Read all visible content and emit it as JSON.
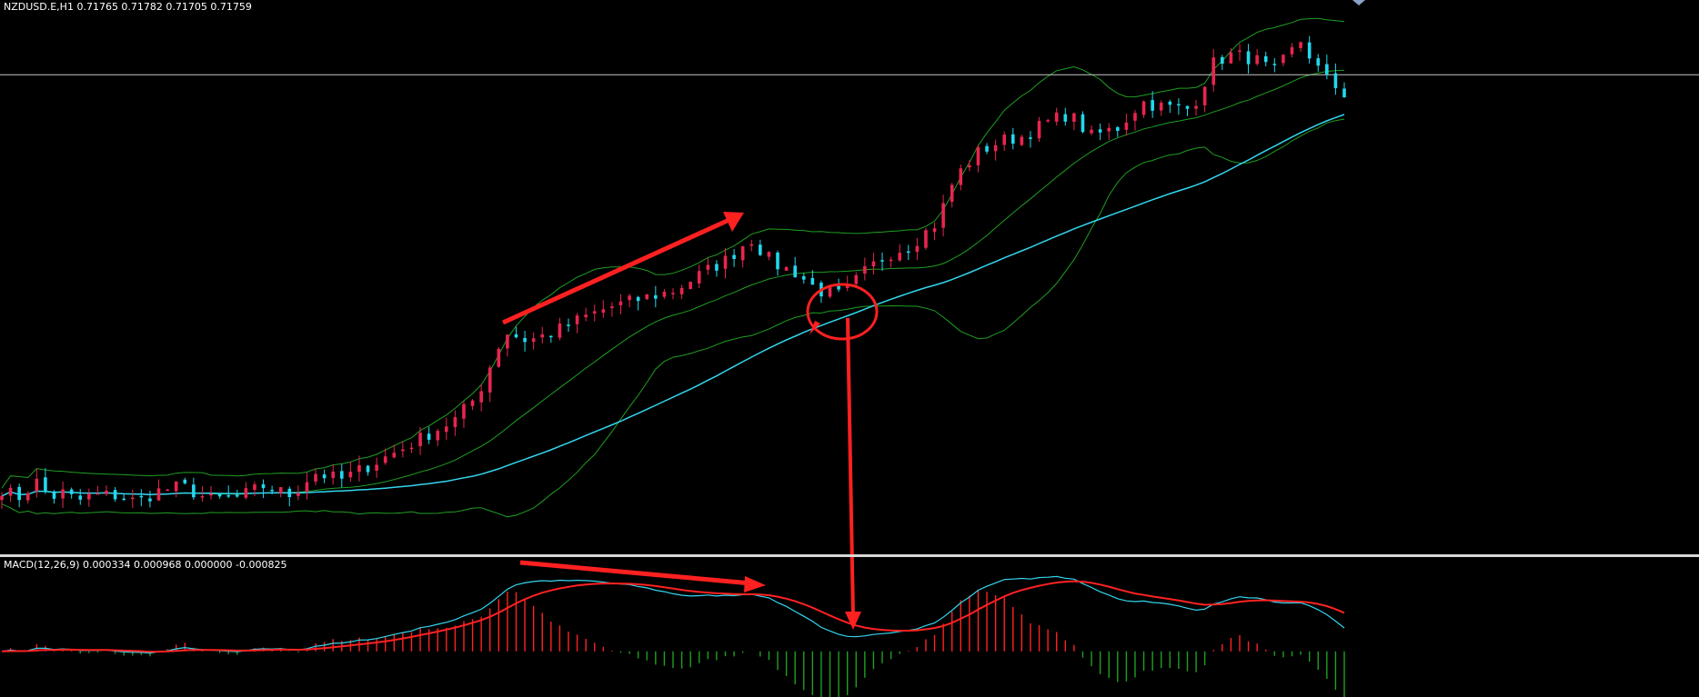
{
  "colors": {
    "background": "#000000",
    "bull_candle": "#e8254f",
    "bear_candle": "#22d8ee",
    "bollinger": "#1f9e22",
    "moving_average": "#33d6ee",
    "price_line": "#c8c8c8",
    "separator": "#dddddd",
    "macd_main": "#33d6ee",
    "macd_signal": "#ff2222",
    "hist_positive": "#ff2222",
    "hist_negative": "#1fa01f",
    "annotation": "#ff2020"
  },
  "chart_data": {
    "type": "candlestick",
    "symbol_header": "NZDUSD.E,H1  0.71765 0.71782 0.71705 0.71759",
    "indicator_header": "MACD(12,26,9) 0.000334 0.000968 0.000000 -0.000825",
    "price_range": [
      0.6998,
      0.7268
    ],
    "macd_range": [
      -0.0011,
      0.0023
    ],
    "current_price": 0.7236,
    "bar_count": 155
  }
}
